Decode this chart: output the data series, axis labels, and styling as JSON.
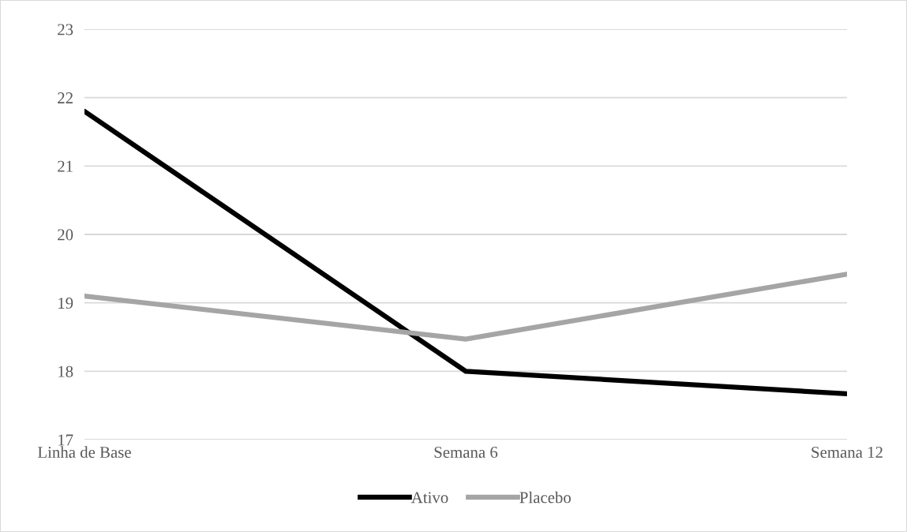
{
  "chart_data": {
    "type": "line",
    "categories": [
      "Linha de Base",
      "Semana 6",
      "Semana 12"
    ],
    "series": [
      {
        "name": "Ativo",
        "color": "#000000",
        "values": [
          21.8,
          18.0,
          17.67
        ]
      },
      {
        "name": "Placebo",
        "color": "#a5a5a5",
        "values": [
          19.1,
          18.47,
          19.42
        ]
      }
    ],
    "ylim": [
      17,
      23
    ],
    "yticks": [
      17,
      18,
      19,
      20,
      21,
      22,
      23
    ],
    "grid": "y",
    "legend": "bottom",
    "marker": "none",
    "line_style": "solid"
  }
}
